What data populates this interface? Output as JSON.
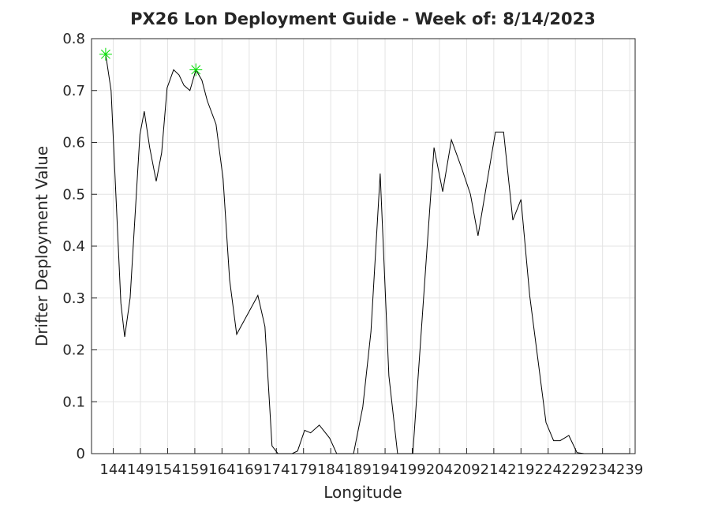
{
  "chart_data": {
    "type": "line",
    "title": "PX26 Lon Deployment Guide - Week of: 8/14/2023",
    "x_label": "Longitude",
    "y_label": "Drifter Deployment Value",
    "xlim": [
      140,
      240
    ],
    "ylim": [
      0,
      0.8
    ],
    "xticks": [
      144,
      149,
      154,
      159,
      164,
      169,
      174,
      179,
      184,
      189,
      194,
      199,
      204,
      209,
      214,
      219,
      224,
      229,
      234,
      239
    ],
    "yticks": [
      0,
      0.1,
      0.2,
      0.3,
      0.4,
      0.5,
      0.6,
      0.7,
      0.8
    ],
    "grid": true,
    "series": [
      {
        "color": "#000000",
        "marker": "none",
        "x": [
          142.6,
          143.6,
          145.4,
          146.1,
          147.1,
          148.9,
          149.7,
          150.7,
          151.9,
          152.9,
          153.9,
          155.1,
          156.1,
          157.0,
          158.1,
          159.2,
          160.3,
          161.3,
          162.9,
          164.2,
          165.4,
          166.7,
          170.6,
          171.9,
          173.2,
          174.3,
          176.9,
          177.9,
          179.2,
          180.3,
          181.9,
          183.8,
          185.1,
          188.2,
          189.9,
          191.4,
          193.1,
          194.7,
          196.3,
          199.1,
          203.0,
          204.6,
          206.2,
          208.1,
          209.7,
          211.1,
          212.7,
          214.3,
          215.8,
          217.5,
          219.0,
          220.6,
          223.6,
          225.0,
          226.2,
          227.8,
          229.3,
          230.6,
          239.0
        ],
        "values": [
          0.77,
          0.7,
          0.29,
          0.225,
          0.3,
          0.615,
          0.66,
          0.59,
          0.525,
          0.58,
          0.705,
          0.74,
          0.73,
          0.71,
          0.7,
          0.74,
          0.72,
          0.68,
          0.635,
          0.53,
          0.335,
          0.23,
          0.305,
          0.245,
          0.015,
          0,
          0,
          0.005,
          0.045,
          0.04,
          0.055,
          0.03,
          0,
          0,
          0.09,
          0.235,
          0.54,
          0.15,
          0,
          0,
          0.59,
          0.505,
          0.605,
          0.55,
          0.5,
          0.42,
          0.52,
          0.62,
          0.62,
          0.45,
          0.49,
          0.305,
          0.06,
          0.025,
          0.025,
          0.035,
          0.002,
          0,
          0
        ]
      },
      {
        "color": "#00dd00",
        "marker": "*",
        "x": [
          142.6,
          159.2
        ],
        "values": [
          0.77,
          0.74
        ]
      }
    ]
  }
}
